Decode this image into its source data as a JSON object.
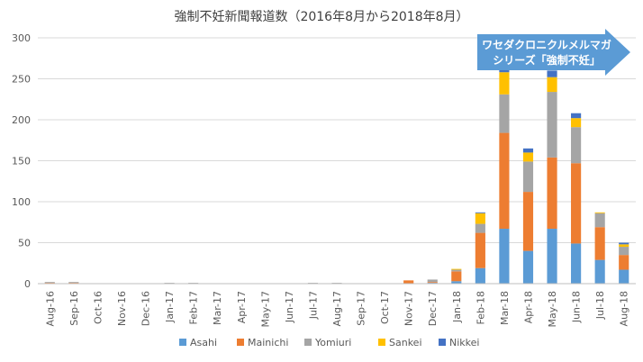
{
  "chart_data": {
    "type": "bar",
    "stacked": true,
    "title": "強制不妊新聞報道数（2016年8月から2018年8月）",
    "categories": [
      "Aug-16",
      "Sep-16",
      "Oct-16",
      "Nov-16",
      "Dec-16",
      "Jan-17",
      "Feb-17",
      "Mar-17",
      "Apr-17",
      "May-17",
      "Jun-17",
      "Jul-17",
      "Aug-17",
      "Sep-17",
      "Oct-17",
      "Nov-17",
      "Dec-17",
      "Jan-18",
      "Feb-18",
      "Mar-18",
      "Apr-18",
      "May-18",
      "Jun-18",
      "Jul-18",
      "Aug-18"
    ],
    "series": [
      {
        "name": "Asahi",
        "color": "#5b9bd5",
        "values": [
          0,
          0,
          0,
          0,
          0,
          0,
          0,
          0,
          0,
          0,
          0,
          0,
          0,
          0,
          0,
          0,
          1,
          3,
          19,
          67,
          40,
          67,
          49,
          29,
          17
        ]
      },
      {
        "name": "Mainichi",
        "color": "#ed7d31",
        "values": [
          1,
          1,
          0,
          0,
          0,
          0,
          0,
          0,
          0,
          0,
          0,
          0,
          0,
          0,
          0,
          4,
          1,
          12,
          43,
          117,
          72,
          87,
          98,
          40,
          18
        ]
      },
      {
        "name": "Yomiuri",
        "color": "#a5a5a5",
        "values": [
          1,
          1,
          0,
          0,
          0,
          1,
          1,
          0,
          0,
          0,
          0,
          1,
          1,
          0,
          0,
          0,
          3,
          2,
          11,
          47,
          37,
          80,
          44,
          17,
          10
        ]
      },
      {
        "name": "Sankei",
        "color": "#ffc000",
        "values": [
          0,
          0,
          0,
          0,
          0,
          0,
          0,
          0,
          0,
          0,
          0,
          0,
          0,
          0,
          0,
          0,
          0,
          1,
          13,
          27,
          11,
          18,
          11,
          1,
          3
        ]
      },
      {
        "name": "Nikkei",
        "color": "#4472c4",
        "values": [
          0,
          0,
          0,
          0,
          0,
          0,
          0,
          0,
          0,
          0,
          0,
          0,
          0,
          0,
          0,
          0,
          0,
          0,
          1,
          6,
          5,
          8,
          6,
          0,
          2
        ]
      }
    ],
    "ylim": [
      0,
      300
    ],
    "yticks": [
      0,
      50,
      100,
      150,
      200,
      250,
      300
    ],
    "grid": true,
    "legend_position": "bottom",
    "annotation": {
      "lines": [
        "ワセダクロニクルメルマガ",
        "シリーズ「強制不妊」"
      ],
      "color": "#5b9bd5"
    }
  }
}
